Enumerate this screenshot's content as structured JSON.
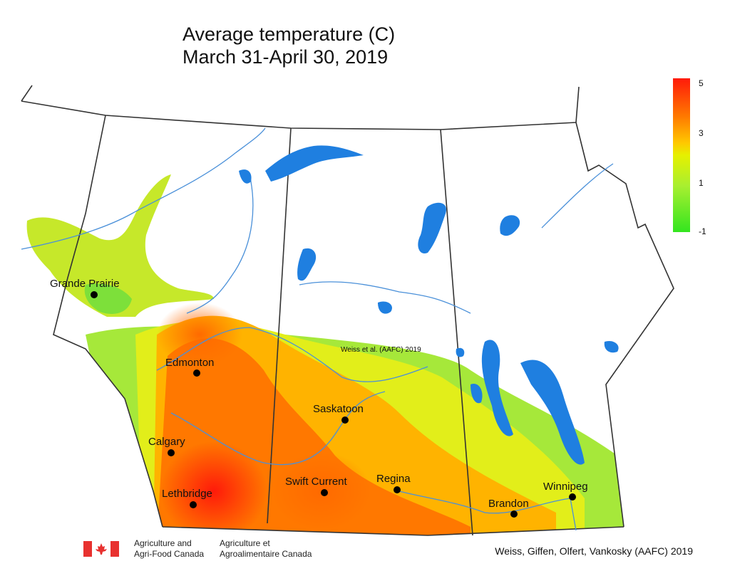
{
  "title": {
    "line1": "Average temperature (C)",
    "line2": "March 31-April 30, 2019"
  },
  "watermark": "Weiss et al. (AAFC) 2019",
  "legend": {
    "ticks": [
      "5",
      "3",
      "1",
      "-1"
    ],
    "colors": {
      "high": "#ff1a0a",
      "mid": "#ffc800",
      "low": "#33e51f"
    }
  },
  "cities": [
    {
      "name": "Grande Prairie"
    },
    {
      "name": "Edmonton"
    },
    {
      "name": "Calgary"
    },
    {
      "name": "Lethbridge"
    },
    {
      "name": "Saskatoon"
    },
    {
      "name": "Swift Current"
    },
    {
      "name": "Regina"
    },
    {
      "name": "Brandon"
    },
    {
      "name": "Winnipeg"
    }
  ],
  "footer": {
    "agency_en_1": "Agriculture and",
    "agency_en_2": "Agri-Food Canada",
    "agency_fr_1": "Agriculture et",
    "agency_fr_2": "Agroalimentaire Canada",
    "credit": "Weiss, Giffen, Olfert, Vankosky (AAFC) 2019"
  },
  "colors": {
    "water": "#1f7fe0",
    "river": "#4a90d9",
    "border": "#333333"
  }
}
